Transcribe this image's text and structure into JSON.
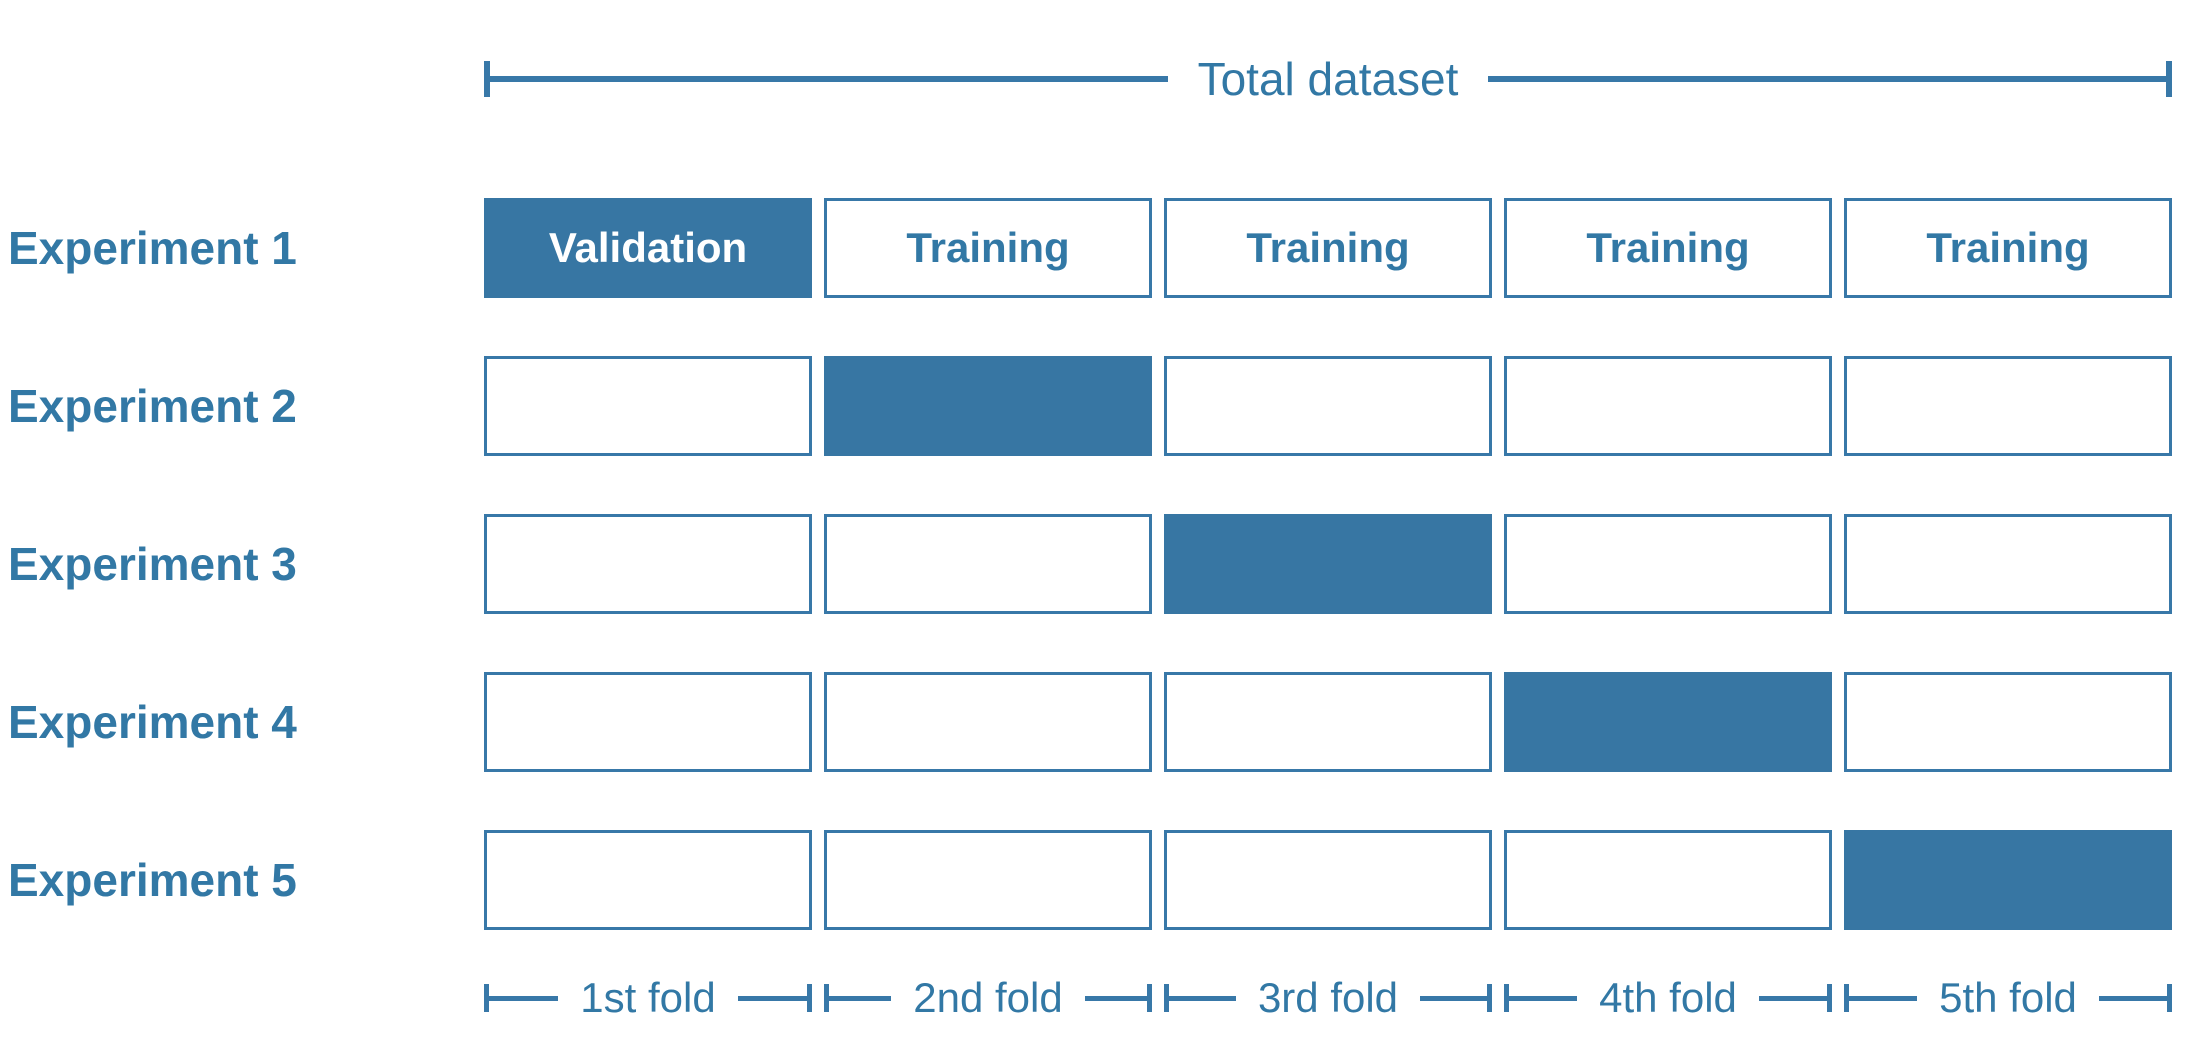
{
  "palette": {
    "accent": "#3878a8",
    "validation_fill": "#3776a3",
    "text_blue": "#3278a5",
    "background": "#ffffff",
    "validation_text": "#ffffff"
  },
  "header": {
    "total_label": "Total dataset"
  },
  "experiments": [
    {
      "label": "Experiment 1",
      "validation_fold": 0,
      "cells": [
        "Validation",
        "Training",
        "Training",
        "Training",
        "Training"
      ]
    },
    {
      "label": "Experiment 2",
      "validation_fold": 1,
      "cells": [
        "",
        "",
        "",
        "",
        ""
      ]
    },
    {
      "label": "Experiment 3",
      "validation_fold": 2,
      "cells": [
        "",
        "",
        "",
        "",
        ""
      ]
    },
    {
      "label": "Experiment 4",
      "validation_fold": 3,
      "cells": [
        "",
        "",
        "",
        "",
        ""
      ]
    },
    {
      "label": "Experiment 5",
      "validation_fold": 4,
      "cells": [
        "",
        "",
        "",
        "",
        ""
      ]
    }
  ],
  "folds": [
    {
      "label": "1st fold"
    },
    {
      "label": "2nd fold"
    },
    {
      "label": "3rd fold"
    },
    {
      "label": "4th fold"
    },
    {
      "label": "5th fold"
    }
  ]
}
